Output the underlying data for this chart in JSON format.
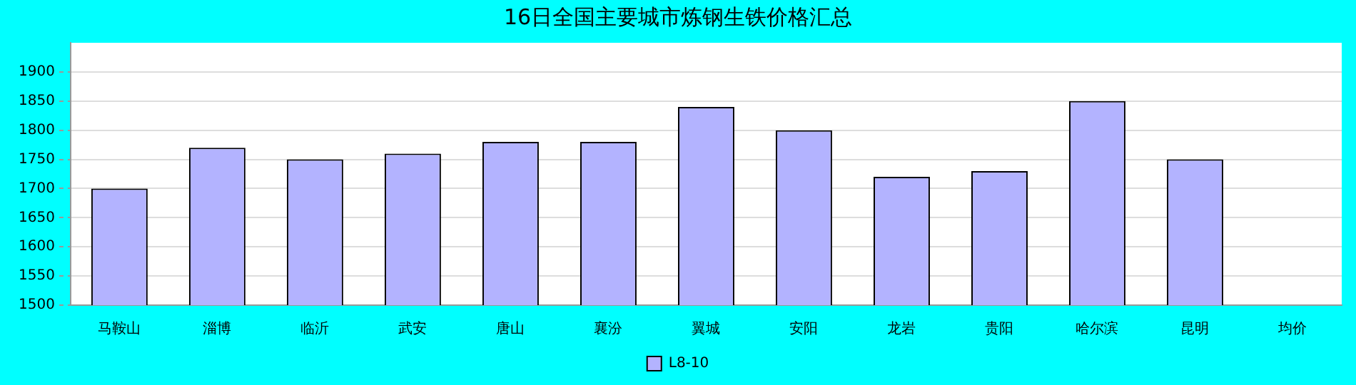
{
  "chart_data": {
    "type": "bar",
    "title": "16日全国主要城市炼钢生铁价格汇总",
    "categories": [
      "马鞍山",
      "淄博",
      "临沂",
      "武安",
      "唐山",
      "襄汾",
      "翼城",
      "安阳",
      "龙岩",
      "贵阳",
      "哈尔滨",
      "昆明",
      "均价"
    ],
    "series": [
      {
        "name": "L8-10",
        "color": "#b3b3ff",
        "values": [
          1700,
          1770,
          1750,
          1760,
          1780,
          1780,
          1840,
          1800,
          1720,
          1730,
          1850,
          1750,
          null
        ]
      }
    ],
    "ylim": [
      1500,
      1950
    ],
    "yticks": [
      1500,
      1550,
      1600,
      1650,
      1700,
      1750,
      1800,
      1850,
      1900
    ],
    "grid": "y",
    "legend": "bottom"
  }
}
